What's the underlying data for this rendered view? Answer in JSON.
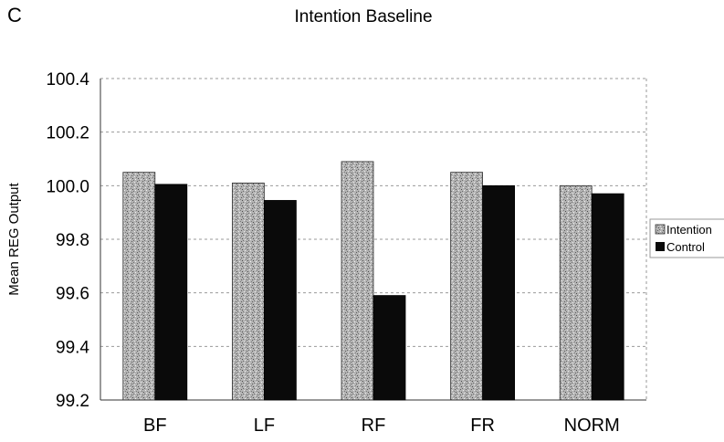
{
  "panel_letter": "C",
  "colors": {
    "intention": "#b0b0b0",
    "control": "#0a0a0a",
    "grid": "#9a9a9a",
    "axis": "#333333"
  },
  "chart_data": {
    "type": "bar",
    "title": "Intention Baseline",
    "xlabel": "",
    "ylabel": "Mean REG Output",
    "ylim": [
      99.2,
      100.4
    ],
    "yticks": [
      "99.2",
      "99.4",
      "99.6",
      "99.8",
      "100.0",
      "100.2",
      "100.4"
    ],
    "grid": true,
    "legend_position": "right",
    "categories": [
      "BF",
      "LF",
      "RF",
      "FR",
      "NORM"
    ],
    "series": [
      {
        "name": "Intention",
        "values": [
          100.05,
          100.01,
          100.09,
          100.05,
          100.0
        ]
      },
      {
        "name": "Control",
        "values": [
          100.005,
          99.945,
          99.59,
          100.0,
          99.97
        ]
      }
    ]
  }
}
